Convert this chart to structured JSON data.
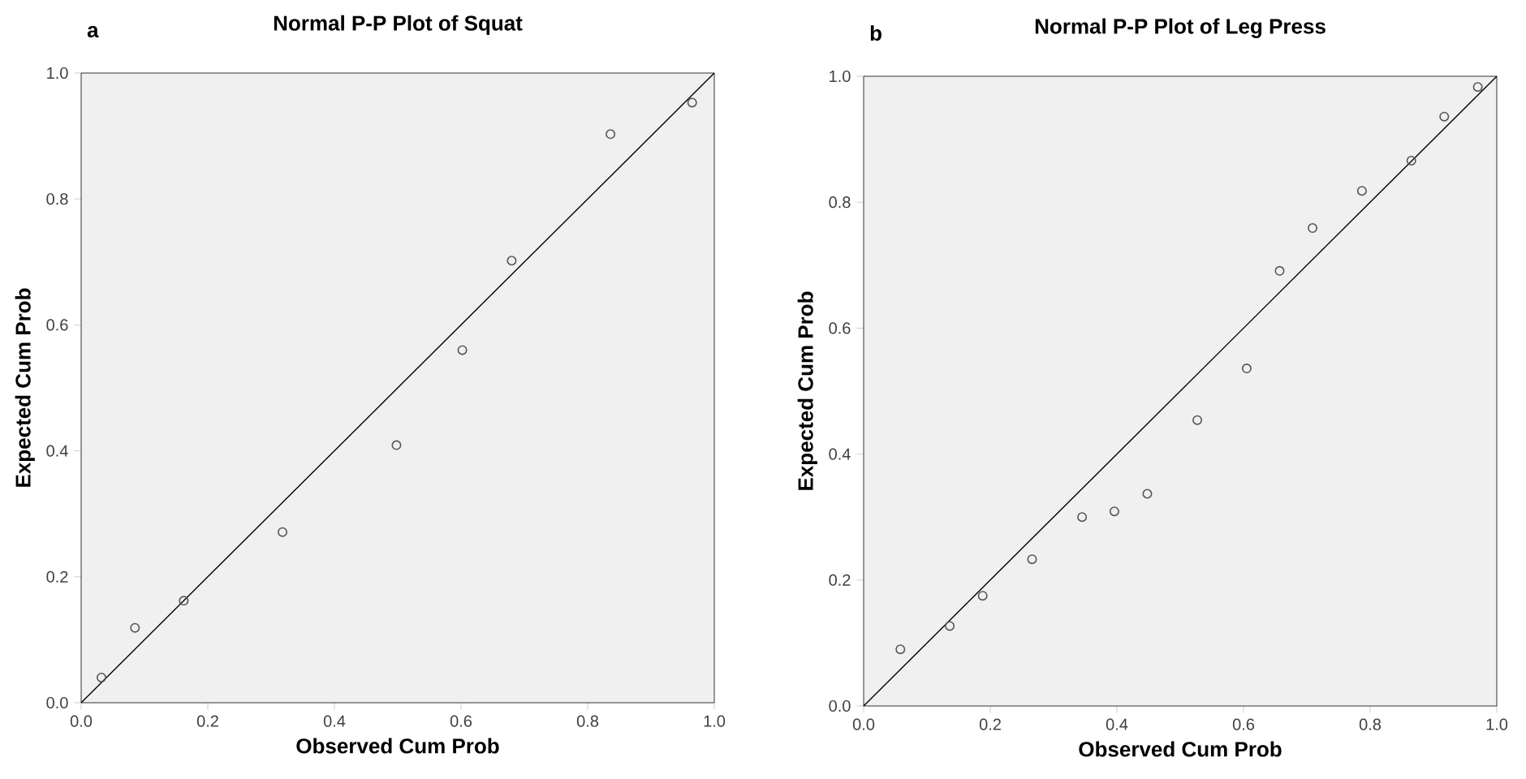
{
  "chart_data": [
    {
      "type": "scatter",
      "title": "Normal P-P Plot of Squat",
      "xlabel": "Observed Cum Prob",
      "ylabel": "Expected Cum Prob",
      "annotations": [
        "a"
      ],
      "xlim": [
        0,
        1
      ],
      "ylim": [
        0,
        1
      ],
      "xticks": [
        {
          "value": 0,
          "label": "0.0"
        },
        {
          "value": 0.2,
          "label": "0.2"
        },
        {
          "value": 0.4,
          "label": "0.4"
        },
        {
          "value": 0.6,
          "label": "0.6"
        },
        {
          "value": 0.8,
          "label": "0.8"
        },
        {
          "value": 1,
          "label": "1.0"
        }
      ],
      "yticks": [
        {
          "value": 0,
          "label": "0.0"
        },
        {
          "value": 0.2,
          "label": "0.2"
        },
        {
          "value": 0.4,
          "label": "0.4"
        },
        {
          "value": 0.6,
          "label": "0.6"
        },
        {
          "value": 0.8,
          "label": "0.8"
        },
        {
          "value": 1,
          "label": "1.0"
        }
      ],
      "series": [
        {
          "marker": "circle",
          "color": "#555555",
          "x": [
            0.032,
            0.085,
            0.162,
            0.318,
            0.498,
            0.602,
            0.68,
            0.836,
            0.965
          ],
          "values": [
            0.04,
            0.119,
            0.162,
            0.271,
            0.409,
            0.56,
            0.702,
            0.903,
            0.953
          ]
        },
        {
          "type": "line",
          "marker": "none",
          "color": "#000000",
          "x": [
            0,
            1
          ],
          "values": [
            0,
            1
          ]
        }
      ]
    },
    {
      "type": "scatter",
      "title": "Normal P-P Plot of  Leg Press",
      "xlabel": "Observed Cum Prob",
      "ylabel": "Expected Cum Prob",
      "annotations": [
        "b"
      ],
      "xlim": [
        0,
        1
      ],
      "ylim": [
        0,
        1
      ],
      "xticks": [
        {
          "value": 0,
          "label": "0.0"
        },
        {
          "value": 0.2,
          "label": "0.2"
        },
        {
          "value": 0.4,
          "label": "0.4"
        },
        {
          "value": 0.6,
          "label": "0.6"
        },
        {
          "value": 0.8,
          "label": "0.8"
        },
        {
          "value": 1,
          "label": "1.0"
        }
      ],
      "yticks": [
        {
          "value": 0,
          "label": "0.0"
        },
        {
          "value": 0.2,
          "label": "0.2"
        },
        {
          "value": 0.4,
          "label": "0.4"
        },
        {
          "value": 0.6,
          "label": "0.6"
        },
        {
          "value": 0.8,
          "label": "0.8"
        },
        {
          "value": 1,
          "label": "1.0"
        }
      ],
      "series": [
        {
          "marker": "circle",
          "color": "#555555",
          "x": [
            0.058,
            0.136,
            0.188,
            0.266,
            0.345,
            0.396,
            0.448,
            0.527,
            0.605,
            0.657,
            0.709,
            0.787,
            0.865,
            0.917,
            0.97
          ],
          "values": [
            0.09,
            0.127,
            0.175,
            0.233,
            0.3,
            0.309,
            0.337,
            0.454,
            0.536,
            0.691,
            0.759,
            0.818,
            0.866,
            0.936,
            0.983
          ]
        },
        {
          "type": "line",
          "marker": "none",
          "color": "#000000",
          "x": [
            0,
            1
          ],
          "values": [
            0,
            1
          ]
        }
      ]
    }
  ]
}
